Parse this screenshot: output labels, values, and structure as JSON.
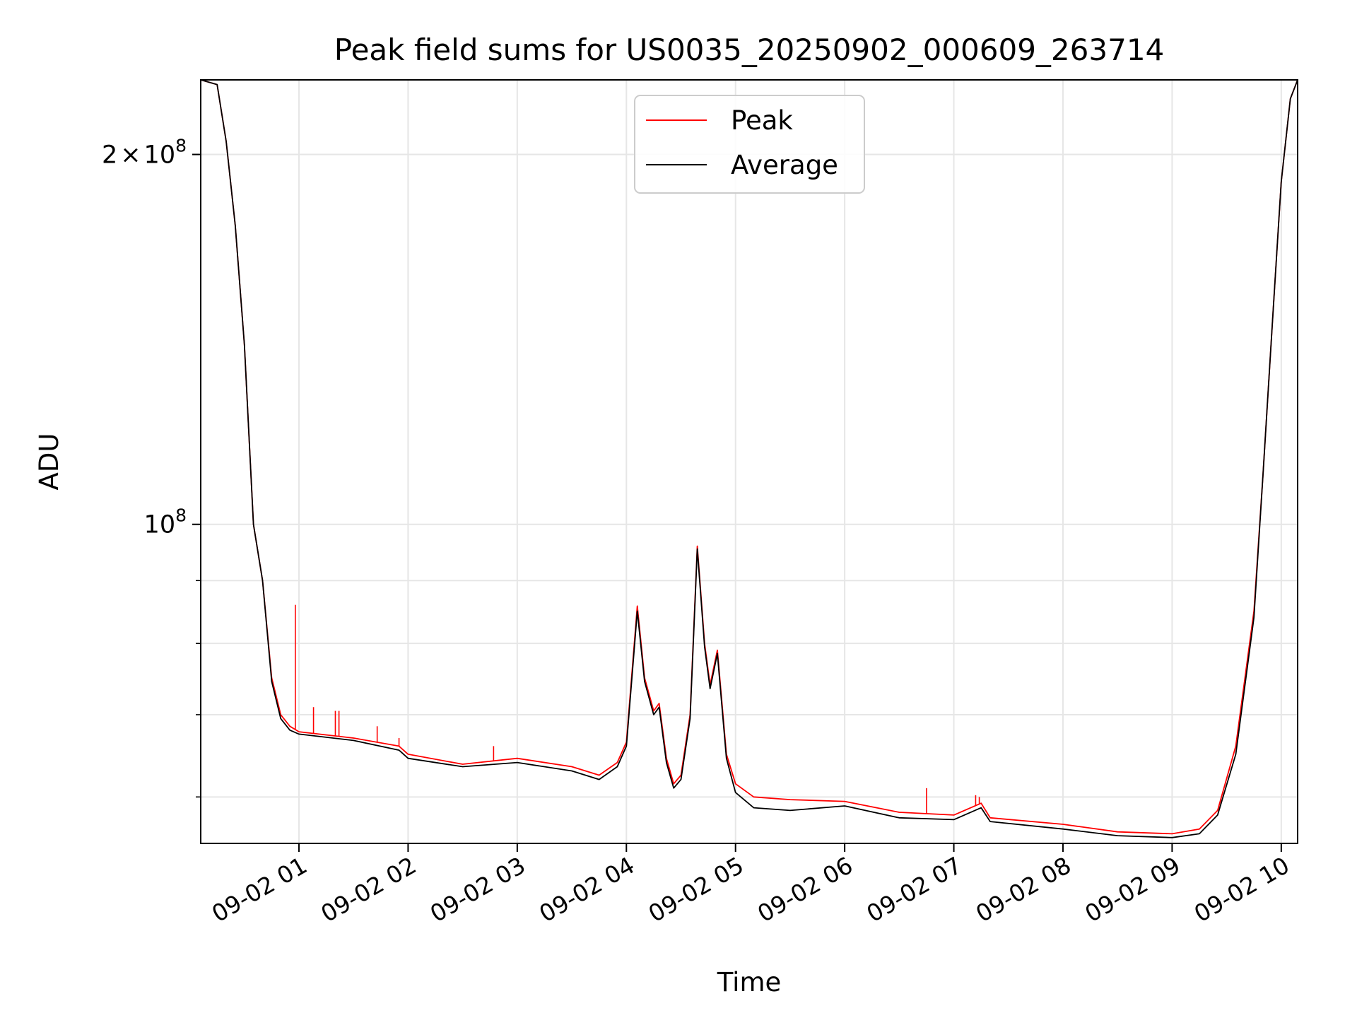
{
  "chart_data": {
    "type": "line",
    "title": "Peak field sums for US0035_20250902_000609_263714",
    "xlabel": "Time",
    "ylabel": "ADU",
    "y_scale": "log",
    "grid": true,
    "legend_position": "upper center",
    "x_range": [
      "09-02 00:06",
      "09-02 10:09"
    ],
    "y_range": [
      55000000,
      230000000
    ],
    "x_ticks": [
      "09-02 01",
      "09-02 02",
      "09-02 03",
      "09-02 04",
      "09-02 05",
      "09-02 06",
      "09-02 07",
      "09-02 08",
      "09-02 09",
      "09-02 10"
    ],
    "y_ticks_labeled": [
      {
        "value": 100000000,
        "label_base": "10",
        "label_exp": "8"
      },
      {
        "value": 200000000,
        "label_coef": "2",
        "label_base": "10",
        "label_exp": "8"
      }
    ],
    "y_ticks_minor": [
      60000000,
      70000000,
      80000000,
      90000000
    ],
    "series": [
      {
        "name": "Peak",
        "color": "#ff0000",
        "points": [
          [
            "09-02 00:06",
            230000000
          ],
          [
            "09-02 00:15",
            228000000
          ],
          [
            "09-02 00:20",
            205000000
          ],
          [
            "09-02 00:25",
            175000000
          ],
          [
            "09-02 00:30",
            140000000
          ],
          [
            "09-02 00:35",
            100000000
          ],
          [
            "09-02 00:40",
            90000000
          ],
          [
            "09-02 00:45",
            75000000
          ],
          [
            "09-02 00:50",
            70000000
          ],
          [
            "09-02 00:55",
            68500000
          ],
          [
            "09-02 01:00",
            67800000
          ],
          [
            "09-02 01:30",
            67000000
          ],
          [
            "09-02 01:55",
            66000000
          ],
          [
            "09-02 02:00",
            65000000
          ],
          [
            "09-02 02:30",
            63800000
          ],
          [
            "09-02 03:00",
            64500000
          ],
          [
            "09-02 03:30",
            63500000
          ],
          [
            "09-02 03:45",
            62500000
          ],
          [
            "09-02 03:55",
            64000000
          ],
          [
            "09-02 04:00",
            66500000
          ],
          [
            "09-02 04:06",
            85800000
          ],
          [
            "09-02 04:10",
            75000000
          ],
          [
            "09-02 04:15",
            70500000
          ],
          [
            "09-02 04:18",
            71500000
          ],
          [
            "09-02 04:22",
            64500000
          ],
          [
            "09-02 04:26",
            61500000
          ],
          [
            "09-02 04:30",
            62500000
          ],
          [
            "09-02 04:35",
            70000000
          ],
          [
            "09-02 04:39",
            96000000
          ],
          [
            "09-02 04:43",
            80000000
          ],
          [
            "09-02 04:46",
            74000000
          ],
          [
            "09-02 04:50",
            79000000
          ],
          [
            "09-02 04:55",
            65000000
          ],
          [
            "09-02 05:00",
            61500000
          ],
          [
            "09-02 05:10",
            60000000
          ],
          [
            "09-02 05:30",
            59700000
          ],
          [
            "09-02 06:00",
            59500000
          ],
          [
            "09-02 06:30",
            58300000
          ],
          [
            "09-02 07:00",
            58000000
          ],
          [
            "09-02 07:15",
            59300000
          ],
          [
            "09-02 07:20",
            57700000
          ],
          [
            "09-02 08:00",
            57000000
          ],
          [
            "09-02 08:30",
            56200000
          ],
          [
            "09-02 09:00",
            56000000
          ],
          [
            "09-02 09:15",
            56500000
          ],
          [
            "09-02 09:25",
            58500000
          ],
          [
            "09-02 09:35",
            66000000
          ],
          [
            "09-02 09:45",
            85000000
          ],
          [
            "09-02 09:50",
            110000000
          ],
          [
            "09-02 09:55",
            145000000
          ],
          [
            "09-02 10:00",
            190000000
          ],
          [
            "09-02 10:05",
            222000000
          ],
          [
            "09-02 10:09",
            230000000
          ]
        ],
        "spikes": [
          [
            "09-02 00:58",
            86000000
          ],
          [
            "09-02 01:08",
            71000000
          ],
          [
            "09-02 01:20",
            70500000
          ],
          [
            "09-02 01:22",
            70500000
          ],
          [
            "09-02 01:43",
            68500000
          ],
          [
            "09-02 01:55",
            67000000
          ],
          [
            "09-02 02:47",
            66000000
          ],
          [
            "09-02 06:45",
            61000000
          ],
          [
            "09-02 07:12",
            60200000
          ],
          [
            "09-02 07:14",
            60000000
          ]
        ]
      },
      {
        "name": "Average",
        "color": "#000000",
        "points": [
          [
            "09-02 00:06",
            230000000
          ],
          [
            "09-02 00:15",
            228000000
          ],
          [
            "09-02 00:20",
            205000000
          ],
          [
            "09-02 00:25",
            175000000
          ],
          [
            "09-02 00:30",
            140000000
          ],
          [
            "09-02 00:35",
            100000000
          ],
          [
            "09-02 00:40",
            90000000
          ],
          [
            "09-02 00:45",
            74500000
          ],
          [
            "09-02 00:50",
            69500000
          ],
          [
            "09-02 00:55",
            68000000
          ],
          [
            "09-02 01:00",
            67500000
          ],
          [
            "09-02 01:30",
            66700000
          ],
          [
            "09-02 01:55",
            65500000
          ],
          [
            "09-02 02:00",
            64500000
          ],
          [
            "09-02 02:30",
            63500000
          ],
          [
            "09-02 03:00",
            64000000
          ],
          [
            "09-02 03:30",
            63000000
          ],
          [
            "09-02 03:45",
            62000000
          ],
          [
            "09-02 03:55",
            63500000
          ],
          [
            "09-02 04:00",
            66000000
          ],
          [
            "09-02 04:06",
            85000000
          ],
          [
            "09-02 04:10",
            74500000
          ],
          [
            "09-02 04:15",
            70000000
          ],
          [
            "09-02 04:18",
            71000000
          ],
          [
            "09-02 04:22",
            64000000
          ],
          [
            "09-02 04:26",
            61000000
          ],
          [
            "09-02 04:30",
            62000000
          ],
          [
            "09-02 04:35",
            69500000
          ],
          [
            "09-02 04:39",
            95500000
          ],
          [
            "09-02 04:43",
            79500000
          ],
          [
            "09-02 04:46",
            73500000
          ],
          [
            "09-02 04:50",
            78500000
          ],
          [
            "09-02 04:55",
            64500000
          ],
          [
            "09-02 05:00",
            60500000
          ],
          [
            "09-02 05:10",
            58800000
          ],
          [
            "09-02 05:30",
            58500000
          ],
          [
            "09-02 06:00",
            59000000
          ],
          [
            "09-02 06:30",
            57700000
          ],
          [
            "09-02 07:00",
            57500000
          ],
          [
            "09-02 07:15",
            58800000
          ],
          [
            "09-02 07:20",
            57300000
          ],
          [
            "09-02 08:00",
            56500000
          ],
          [
            "09-02 08:30",
            55800000
          ],
          [
            "09-02 09:00",
            55600000
          ],
          [
            "09-02 09:15",
            56000000
          ],
          [
            "09-02 09:25",
            58000000
          ],
          [
            "09-02 09:35",
            65000000
          ],
          [
            "09-02 09:45",
            84000000
          ],
          [
            "09-02 09:50",
            110000000
          ],
          [
            "09-02 09:55",
            145000000
          ],
          [
            "09-02 10:00",
            190000000
          ],
          [
            "09-02 10:05",
            222000000
          ],
          [
            "09-02 10:09",
            230000000
          ]
        ]
      }
    ]
  }
}
